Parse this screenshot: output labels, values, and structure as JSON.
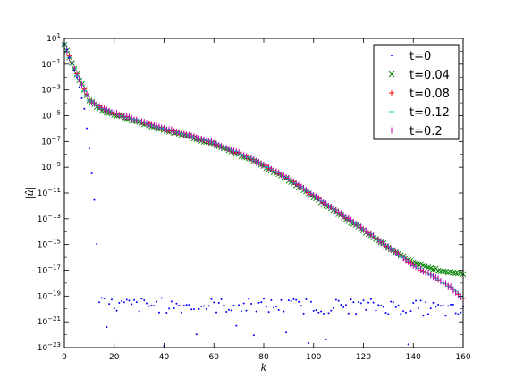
{
  "chart_data": {
    "type": "scatter",
    "title": "",
    "xlabel": "k",
    "ylabel": "|û|",
    "xlim": [
      0,
      160
    ],
    "ylim_log10": [
      -23,
      1
    ],
    "yscale": "log",
    "grid": false,
    "legend_position": "top-right",
    "x_ticks": [
      "0",
      "20",
      "40",
      "60",
      "80",
      "100",
      "120",
      "140",
      "160"
    ],
    "y_ticks": [
      {
        "base": "10",
        "exp": "1"
      },
      {
        "base": "10",
        "exp": "−1"
      },
      {
        "base": "10",
        "exp": "−3"
      },
      {
        "base": "10",
        "exp": "−5"
      },
      {
        "base": "10",
        "exp": "−7"
      },
      {
        "base": "10",
        "exp": "−9"
      },
      {
        "base": "10",
        "exp": "−11"
      },
      {
        "base": "10",
        "exp": "−13"
      },
      {
        "base": "10",
        "exp": "−15"
      },
      {
        "base": "10",
        "exp": "−17"
      },
      {
        "base": "10",
        "exp": "−19"
      },
      {
        "base": "10",
        "exp": "−21"
      },
      {
        "base": "10",
        "exp": "−23"
      }
    ],
    "series_description": "log10|û(k)| estimated at x = 0..160 step 1 via piecewise-linear profiles",
    "series": [
      {
        "name": "t=0",
        "marker": "dot",
        "color": "#0000ff",
        "profile": [
          [
            0,
            0.6
          ],
          [
            5,
            -2.0
          ],
          [
            8,
            -4.5
          ],
          [
            10,
            -7.5
          ],
          [
            12,
            -11.5
          ],
          [
            13,
            -15.0
          ],
          [
            14,
            -19.5
          ]
        ],
        "noise_floor_from": 15,
        "noise_floor_mean": -19.7,
        "noise_floor_spread": 0.6,
        "noise_floor_tail": [
          [
            130,
            -19.8
          ],
          [
            150,
            -20.0
          ],
          [
            160,
            -20.3
          ]
        ]
      },
      {
        "name": "t=0.04",
        "marker": "x",
        "color": "#008000",
        "profile": [
          [
            0,
            0.5
          ],
          [
            5,
            -1.8
          ],
          [
            10,
            -3.8
          ],
          [
            15,
            -4.6
          ],
          [
            20,
            -4.9
          ],
          [
            30,
            -5.5
          ],
          [
            40,
            -6.1
          ],
          [
            50,
            -6.6
          ],
          [
            60,
            -7.2
          ],
          [
            70,
            -8.0
          ],
          [
            80,
            -8.9
          ],
          [
            90,
            -10.0
          ],
          [
            100,
            -11.3
          ],
          [
            110,
            -12.6
          ],
          [
            120,
            -13.9
          ],
          [
            130,
            -15.2
          ],
          [
            140,
            -16.4
          ],
          [
            150,
            -17.0
          ],
          [
            160,
            -17.3
          ]
        ]
      },
      {
        "name": "t=0.08",
        "marker": "plus",
        "color": "#ff0000",
        "profile": [
          [
            0,
            0.5
          ],
          [
            5,
            -1.8
          ],
          [
            10,
            -3.8
          ],
          [
            15,
            -4.4
          ],
          [
            20,
            -4.8
          ],
          [
            30,
            -5.4
          ],
          [
            40,
            -6.0
          ],
          [
            50,
            -6.5
          ],
          [
            60,
            -7.1
          ],
          [
            70,
            -7.9
          ],
          [
            80,
            -8.8
          ],
          [
            90,
            -9.9
          ],
          [
            100,
            -11.2
          ],
          [
            110,
            -12.5
          ],
          [
            120,
            -13.8
          ],
          [
            130,
            -15.2
          ],
          [
            140,
            -16.6
          ],
          [
            150,
            -17.7
          ],
          [
            155,
            -18.3
          ],
          [
            160,
            -19.2
          ]
        ]
      },
      {
        "name": "t=0.12",
        "marker": "hline",
        "color": "#00bfbf",
        "profile": [
          [
            0,
            0.5
          ],
          [
            5,
            -1.8
          ],
          [
            10,
            -3.8
          ],
          [
            15,
            -4.4
          ],
          [
            20,
            -4.8
          ],
          [
            30,
            -5.4
          ],
          [
            40,
            -6.0
          ],
          [
            50,
            -6.5
          ],
          [
            60,
            -7.1
          ],
          [
            70,
            -7.9
          ],
          [
            80,
            -8.8
          ],
          [
            90,
            -9.9
          ],
          [
            100,
            -11.2
          ],
          [
            110,
            -12.5
          ],
          [
            120,
            -13.8
          ],
          [
            130,
            -15.2
          ],
          [
            140,
            -16.6
          ],
          [
            150,
            -17.7
          ],
          [
            155,
            -18.3
          ],
          [
            160,
            -19.2
          ]
        ]
      },
      {
        "name": "t=0.2",
        "marker": "vline",
        "color": "#bf00bf",
        "profile": [
          [
            0,
            0.5
          ],
          [
            5,
            -1.8
          ],
          [
            10,
            -3.8
          ],
          [
            15,
            -4.4
          ],
          [
            20,
            -4.8
          ],
          [
            30,
            -5.4
          ],
          [
            40,
            -6.0
          ],
          [
            50,
            -6.5
          ],
          [
            60,
            -7.1
          ],
          [
            70,
            -7.9
          ],
          [
            80,
            -8.8
          ],
          [
            90,
            -9.9
          ],
          [
            100,
            -11.2
          ],
          [
            110,
            -12.5
          ],
          [
            120,
            -13.8
          ],
          [
            130,
            -15.2
          ],
          [
            140,
            -16.6
          ],
          [
            150,
            -17.7
          ],
          [
            155,
            -18.3
          ],
          [
            160,
            -19.3
          ]
        ]
      }
    ]
  }
}
